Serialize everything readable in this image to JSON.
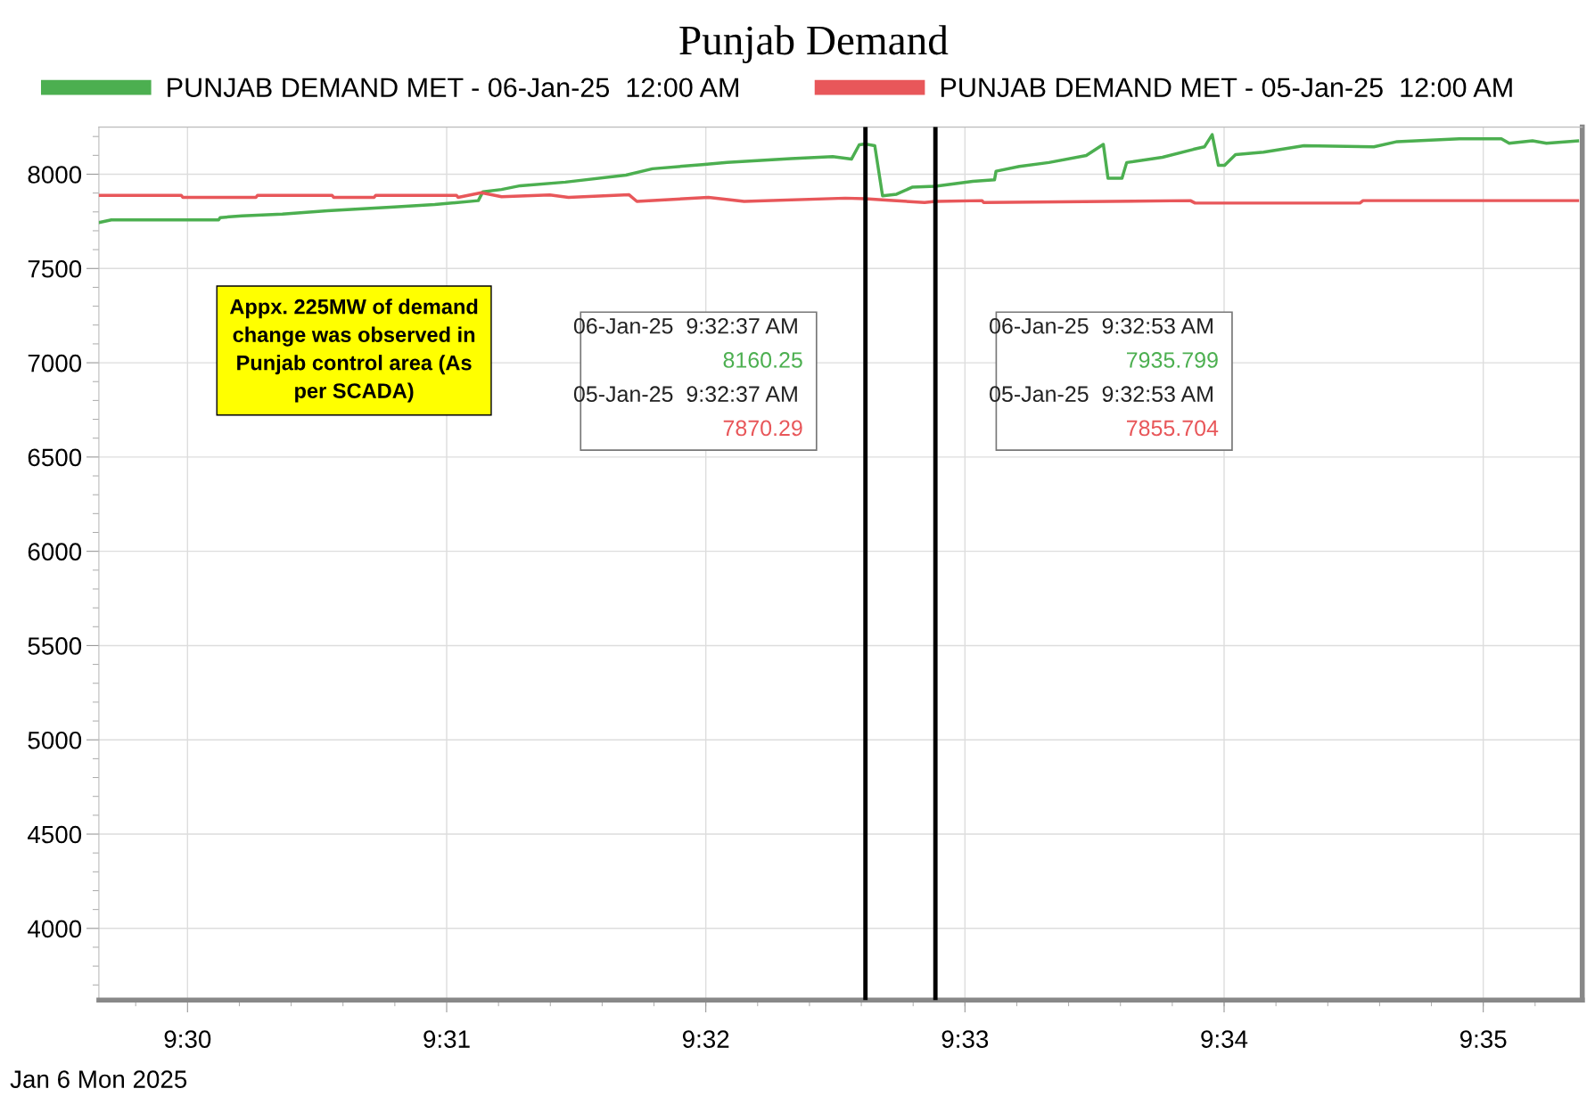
{
  "chart_data": {
    "type": "line",
    "title": "Punjab Demand",
    "xlabel": "Jan 6 Mon 2025",
    "xlim": [
      9.4943,
      9.5897
    ],
    "ylim": [
      3620,
      8250
    ],
    "xticks": [
      {
        "value": 9.5,
        "label": "9:30"
      },
      {
        "value": 9.516667,
        "label": "9:31"
      },
      {
        "value": 9.533333,
        "label": "9:32"
      },
      {
        "value": 9.55,
        "label": "9:33"
      },
      {
        "value": 9.566667,
        "label": "9:34"
      },
      {
        "value": 9.583333,
        "label": "9:35"
      }
    ],
    "yticks": [
      4000,
      4500,
      5000,
      5500,
      6000,
      6500,
      7000,
      7500,
      8000
    ],
    "grid": true,
    "legend": "top",
    "line_style": "solid",
    "marker": "none",
    "series": [
      {
        "name": "PUNJAB DEMAND MET - 06-Jan-25  12:00 AM",
        "color": "#4caf50",
        "x": [
          9.4943,
          9.4951,
          9.502,
          9.5021,
          9.5035,
          9.5061,
          9.509,
          9.5133,
          9.5159,
          9.5187,
          9.519,
          9.5202,
          9.5214,
          9.5243,
          9.5282,
          9.5299,
          9.5331,
          9.5347,
          9.5388,
          9.5415,
          9.5427,
          9.5432,
          9.5436,
          9.5442,
          9.5447,
          9.5456,
          9.5466,
          9.5481,
          9.5505,
          9.5519,
          9.552,
          9.5535,
          9.5554,
          9.5578,
          9.5589,
          9.5592,
          9.5601,
          9.5604,
          9.5627,
          9.5647,
          9.5654,
          9.5659,
          9.5663,
          9.5667,
          9.5674,
          9.5692,
          9.5718,
          9.5763,
          9.5778,
          9.5818,
          9.5845,
          9.585,
          9.5865,
          9.5874,
          9.5894
        ],
        "values": [
          7744,
          7758,
          7758,
          7770,
          7779,
          7788,
          7806,
          7826,
          7839,
          7860,
          7907,
          7919,
          7939,
          7958,
          7995,
          8029,
          8051,
          8063,
          8083,
          8093,
          8080,
          8156,
          8160.25,
          8151,
          7885,
          7894,
          7931,
          7935.799,
          7962,
          7970,
          8016,
          8041,
          8062,
          8099,
          8158,
          7979,
          7979,
          8062,
          8090,
          8132,
          8145,
          8210,
          8047,
          8047,
          8104,
          8117,
          8151,
          8145,
          8173,
          8188,
          8188,
          8164,
          8177,
          8164,
          8177
        ]
      },
      {
        "name": "PUNJAB DEMAND MET - 05-Jan-25  12:00 AM",
        "color": "#e8575a",
        "x": [
          9.4943,
          9.4996,
          9.4997,
          9.5044,
          9.5045,
          9.5093,
          9.5094,
          9.512,
          9.5121,
          9.5173,
          9.5174,
          9.5189,
          9.5202,
          9.5233,
          9.5245,
          9.5284,
          9.5289,
          9.5335,
          9.5358,
          9.5423,
          9.5436,
          9.5449,
          9.5474,
          9.5481,
          9.5511,
          9.5512,
          9.5645,
          9.5648,
          9.5754,
          9.5756,
          9.5894
        ],
        "values": [
          7888,
          7888,
          7877,
          7877,
          7888,
          7888,
          7877,
          7877,
          7888,
          7888,
          7877,
          7902,
          7881,
          7890,
          7877,
          7891,
          7856,
          7877,
          7856,
          7873,
          7870.29,
          7863,
          7850,
          7855.704,
          7860,
          7850,
          7860,
          7847,
          7847,
          7860,
          7860
        ]
      }
    ],
    "ref_lines": [
      {
        "axis": "x",
        "value": 9.5436,
        "color": "#000000",
        "line_style": "solid"
      },
      {
        "axis": "x",
        "value": 9.5481,
        "color": "#000000",
        "line_style": "solid"
      }
    ],
    "annotations": [
      "Appx. 225MW of demand\nchange was observed in\nPunjab control area (As\nper SCADA)",
      "06-Jan-25  9:32:37 AM\n8160.25\n05-Jan-25  9:32:37 AM\n7870.29",
      "06-Jan-25  9:32:53 AM\n7935.799\n05-Jan-25  9:32:53 AM\n7855.704"
    ]
  }
}
